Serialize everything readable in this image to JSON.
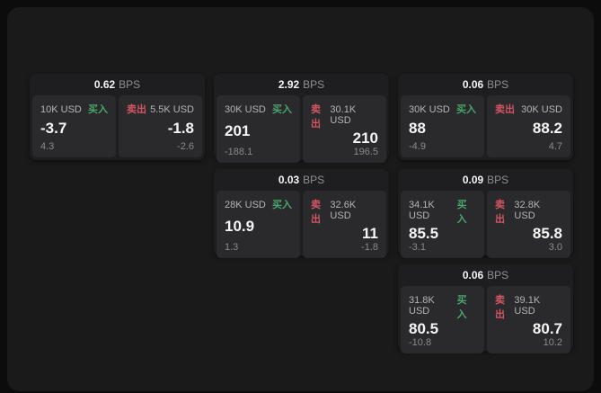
{
  "colors": {
    "page_bg": "#0c0c0c",
    "window_bg": "#1a1a1b",
    "card_bg": "#1e1e20",
    "panel_bg": "#2a2a2d",
    "buy_green": "#4aa56b",
    "sell_red": "#d25562",
    "value_white": "#f5f5f5",
    "label_gray": "#b4b4b4",
    "sub_gray": "#8a8a8a",
    "bps_unit_gray": "#8f8f8f"
  },
  "cards": [
    {
      "bps_value": "0.62",
      "bps_unit": "BPS",
      "buy": {
        "amount": "10K USD",
        "label": "买入",
        "value": "-3.7",
        "sub": "4.3"
      },
      "sell": {
        "label": "卖出",
        "amount": "5.5K USD",
        "value": "-1.8",
        "sub": "-2.6"
      }
    },
    {
      "bps_value": "2.92",
      "bps_unit": "BPS",
      "buy": {
        "amount": "30K USD",
        "label": "买入",
        "value": "201",
        "sub": "-188.1"
      },
      "sell": {
        "label": "卖出",
        "amount": "30.1K USD",
        "value": "210",
        "sub": "196.5"
      }
    },
    {
      "bps_value": "0.06",
      "bps_unit": "BPS",
      "buy": {
        "amount": "30K USD",
        "label": "买入",
        "value": "88",
        "sub": "-4.9"
      },
      "sell": {
        "label": "卖出",
        "amount": "30K USD",
        "value": "88.2",
        "sub": "4.7"
      }
    },
    {
      "bps_value": "0.03",
      "bps_unit": "BPS",
      "buy": {
        "amount": "28K USD",
        "label": "买入",
        "value": "10.9",
        "sub": "1.3"
      },
      "sell": {
        "label": "卖出",
        "amount": "32.6K USD",
        "value": "11",
        "sub": "-1.8"
      }
    },
    {
      "bps_value": "0.09",
      "bps_unit": "BPS",
      "buy": {
        "amount": "34.1K USD",
        "label": "买入",
        "value": "85.5",
        "sub": "-3.1"
      },
      "sell": {
        "label": "卖出",
        "amount": "32.8K USD",
        "value": "85.8",
        "sub": "3.0"
      }
    },
    {
      "bps_value": "0.06",
      "bps_unit": "BPS",
      "buy": {
        "amount": "31.8K USD",
        "label": "买入",
        "value": "80.5",
        "sub": "-10.8"
      },
      "sell": {
        "label": "卖出",
        "amount": "39.1K USD",
        "value": "80.7",
        "sub": "10.2"
      }
    }
  ]
}
